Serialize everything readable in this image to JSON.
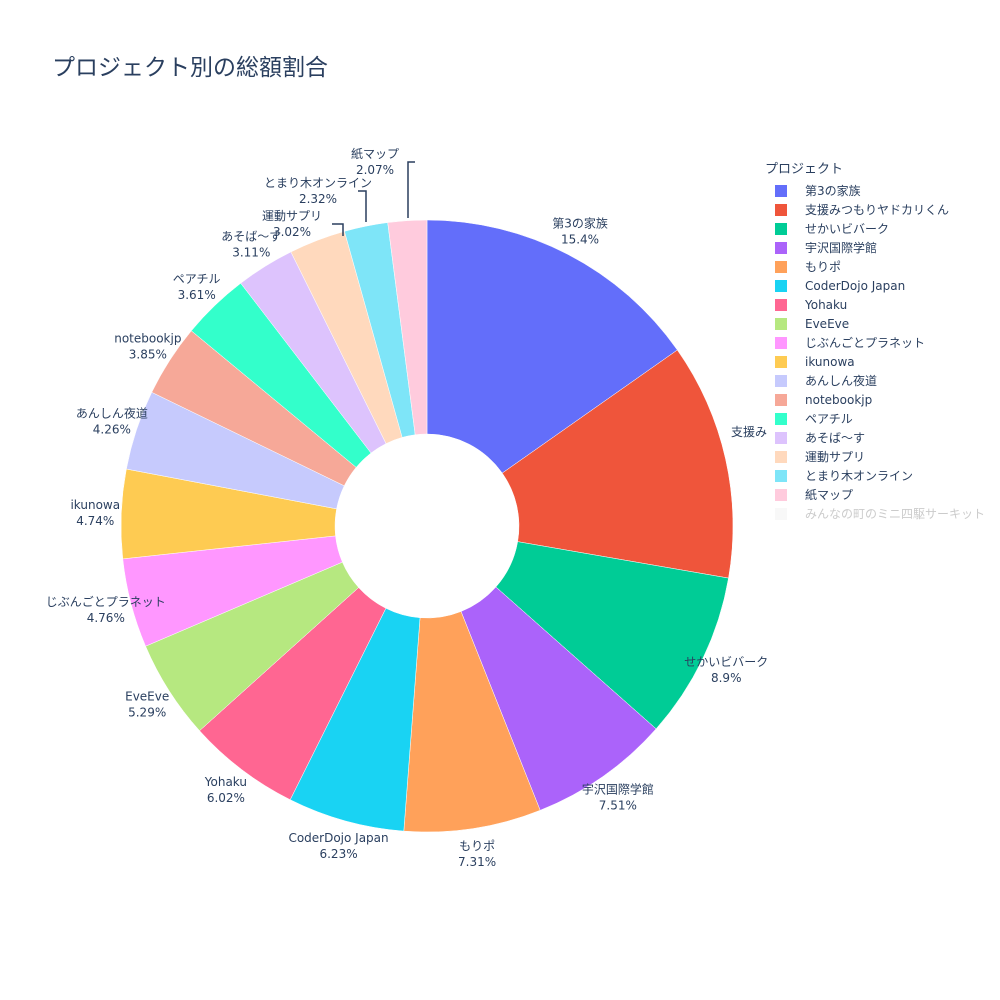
{
  "title": "プロジェクト別の総額割合",
  "legend": {
    "title": "プロジェクト",
    "items": [
      {
        "label": "第3の家族",
        "color": "#636efa",
        "visible": true
      },
      {
        "label": "支援みつもりヤドカリくん",
        "color": "#EF553B",
        "visible": true
      },
      {
        "label": "せかいビバーク",
        "color": "#00cc96",
        "visible": true
      },
      {
        "label": "宇沢国際学館",
        "color": "#ab63fa",
        "visible": true
      },
      {
        "label": "もりポ",
        "color": "#FFA15A",
        "visible": true
      },
      {
        "label": "CoderDojo Japan",
        "color": "#19d3f3",
        "visible": true
      },
      {
        "label": "Yohaku",
        "color": "#FF6692",
        "visible": true
      },
      {
        "label": "EveEve",
        "color": "#B6E880",
        "visible": true
      },
      {
        "label": "じぶんごとプラネット",
        "color": "#FF97FF",
        "visible": true
      },
      {
        "label": "ikunowa",
        "color": "#FECB52",
        "visible": true
      },
      {
        "label": "あんしん夜道",
        "color": "#c6cafd",
        "visible": true
      },
      {
        "label": "notebookjp",
        "color": "#f6a898",
        "visible": true
      },
      {
        "label": "ペアチル",
        "color": "#33ffcb",
        "visible": true
      },
      {
        "label": "あそば〜す",
        "color": "#ddc3fd",
        "visible": true
      },
      {
        "label": "運動サプリ",
        "color": "#ffd9bd",
        "visible": true
      },
      {
        "label": "とまり木オンライン",
        "color": "#7ee5f8",
        "visible": true
      },
      {
        "label": "紙マップ",
        "color": "#ffcbdd",
        "visible": true
      },
      {
        "label": "みんなの町のミニ四駆サーキット",
        "color": "#f2f2f2",
        "visible": false
      }
    ]
  },
  "chart_data": {
    "type": "pie",
    "title": "プロジェクト別の総額割合",
    "hole": 0.3,
    "legend_title": "プロジェクト",
    "legend_position": "right",
    "categories": [
      "第3の家族",
      "支援みつもりヤドカリくん",
      "せかいビバーク",
      "宇沢国際学館",
      "もりポ",
      "CoderDojo Japan",
      "Yohaku",
      "EveEve",
      "じぶんごとプラネット",
      "ikunowa",
      "あんしん夜道",
      "notebookjp",
      "ペアチル",
      "あそば〜す",
      "運動サプリ",
      "とまり木オンライン",
      "紙マップ",
      "みんなの町のミニ四駆サーキット"
    ],
    "values": [
      15.4,
      12.6,
      8.9,
      7.51,
      7.31,
      6.23,
      6.02,
      5.29,
      4.76,
      4.74,
      4.26,
      3.85,
      3.61,
      3.11,
      3.02,
      2.32,
      2.07,
      0
    ],
    "labels": [
      "15.4%",
      "12.6%",
      "8.9%",
      "7.51%",
      "7.31%",
      "6.23%",
      "6.02%",
      "5.29%",
      "4.76%",
      "4.74%",
      "4.26%",
      "3.85%",
      "3.61%",
      "3.11%",
      "3.02%",
      "2.32%",
      "2.07%",
      ""
    ],
    "visible_label_text": {
      "支援みつもりヤドカリくん": "支援み"
    }
  }
}
